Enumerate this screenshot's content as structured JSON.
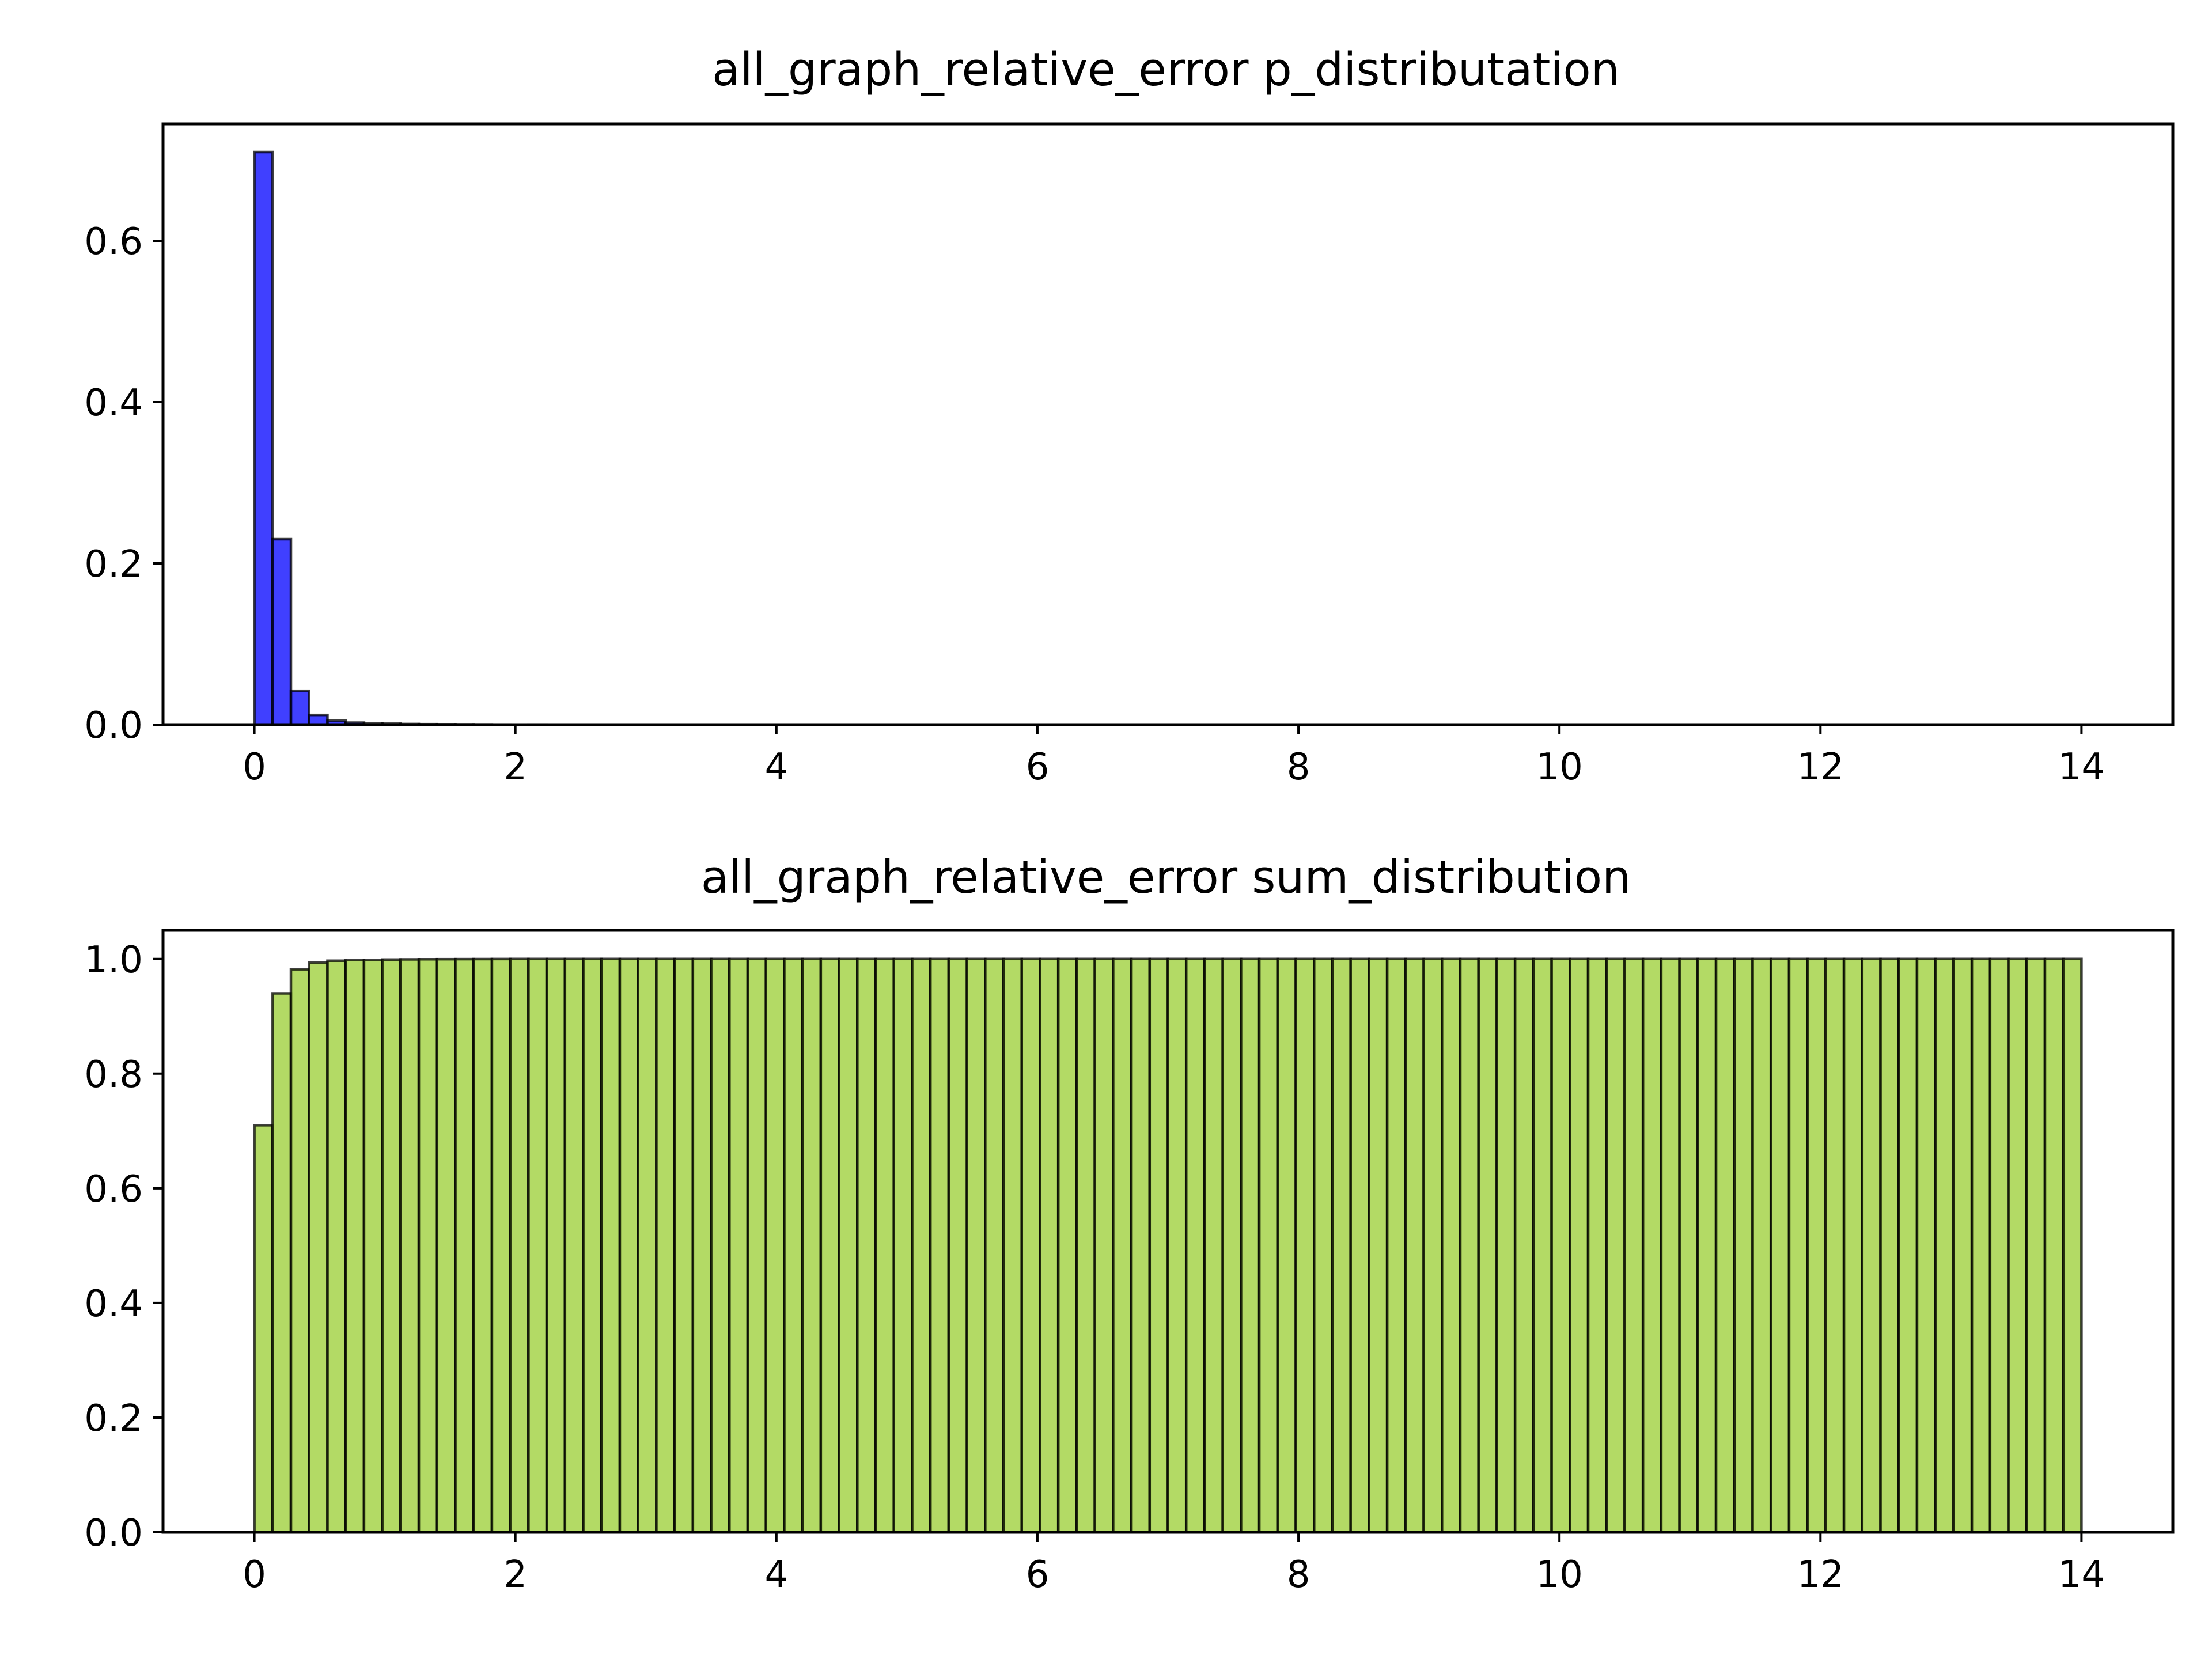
{
  "chart_data": [
    {
      "type": "bar",
      "title": "all_graph_relative_error p_distributation",
      "xlabel": "",
      "ylabel": "",
      "bin_start": 0,
      "bin_width": 0.14,
      "values": [
        0.71,
        0.23,
        0.042,
        0.012,
        0.005,
        0.0025,
        0.0015,
        0.0012,
        0.0008,
        0.0006,
        0.0005,
        0.0004,
        0.0003,
        0.0002,
        0.0001,
        0.0002
      ],
      "total_bins": 100,
      "xlim": [
        -0.7,
        14.7
      ],
      "ylim": [
        0,
        0.745
      ],
      "xticks": [
        "0",
        "2",
        "4",
        "6",
        "8",
        "10",
        "12",
        "14"
      ],
      "yticks": [
        "0.0",
        "0.2",
        "0.4",
        "0.6"
      ],
      "color": "#0000ff",
      "edge_color": "#000000",
      "bar_opacity": 0.75
    },
    {
      "type": "bar",
      "title": "all_graph_relative_error sum_distribution",
      "xlabel": "",
      "ylabel": "",
      "bin_start": 0,
      "bin_width": 0.14,
      "values": [
        0.71,
        0.94,
        0.982,
        0.994,
        0.997,
        0.998,
        0.9985,
        0.999,
        0.9993,
        0.9995,
        0.9996,
        0.9997,
        0.9998,
        0.9999
      ],
      "fill_value": 1.0,
      "total_bins": 100,
      "xlim": [
        -0.7,
        14.7
      ],
      "ylim": [
        0,
        1.05
      ],
      "xticks": [
        "0",
        "2",
        "4",
        "6",
        "8",
        "10",
        "12",
        "14"
      ],
      "yticks": [
        "0.0",
        "0.2",
        "0.4",
        "0.6",
        "0.8",
        "1.0"
      ],
      "color": "#9acd32",
      "edge_color": "#000000",
      "bar_opacity": 0.75
    }
  ]
}
